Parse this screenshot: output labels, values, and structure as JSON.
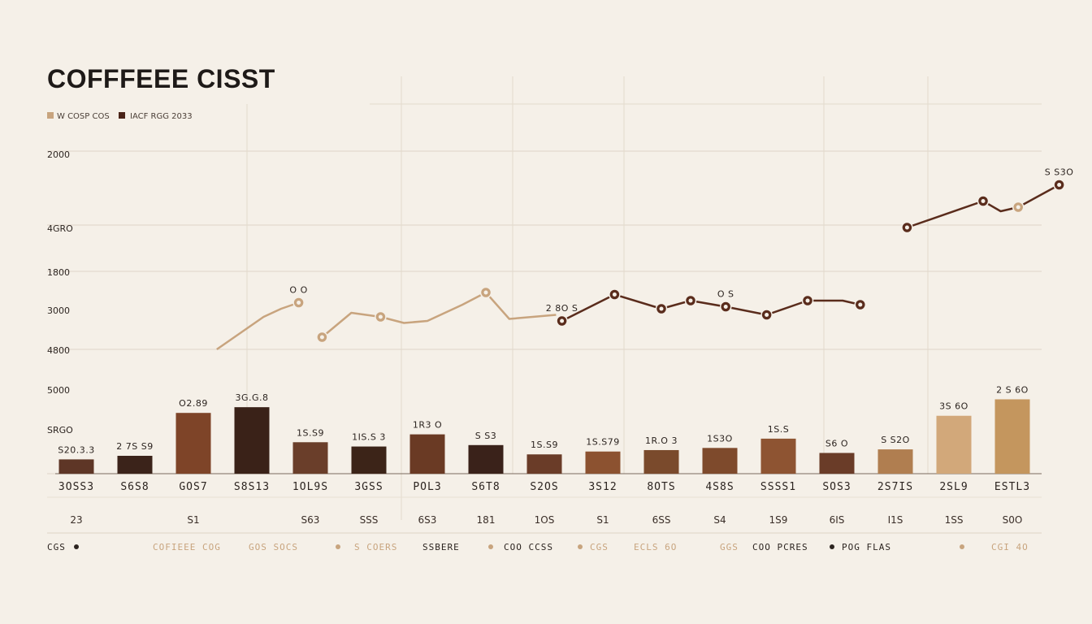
{
  "chart_data": {
    "type": "bar",
    "title": "COFFFEEE CISST",
    "legend": [
      {
        "label": "W COSP COS",
        "color": "#c8a47e"
      },
      {
        "label": "IACF RGG 2033",
        "color": "#4a2418"
      }
    ],
    "y_ticks": [
      "2000",
      "4GRO",
      "1800",
      "3000",
      "4800",
      "5000",
      "SRGO"
    ],
    "categories": [
      "3OSS3",
      "S6S8",
      "GOS7",
      "S8S13",
      "1OL9S",
      "3GSS",
      "POL3",
      "S6T8",
      "S2OS",
      "3S12",
      "8OTS",
      "4S8S",
      "SSSS1",
      "SOS3",
      "2S7IS",
      "2SL9",
      "ESTL3"
    ],
    "values": [
      20,
      25,
      85,
      93,
      44,
      38,
      55,
      40,
      27,
      31,
      33,
      36,
      49,
      29,
      34,
      81,
      104
    ],
    "bar_labels": [
      "S20.3.3",
      "2 7S S9",
      "O2.89",
      "3G.G.8",
      "1S.S9",
      "1IS.S 3",
      "1R3 O",
      "S S3",
      "1S.S9",
      "1S.S79",
      "1R.O 3",
      "1S3O",
      "1S.S",
      "S6 O",
      "S S2O",
      "3S 6O",
      "2 S 6O"
    ],
    "bar_colors": [
      "#5e3626",
      "#3b231a",
      "#7e4428",
      "#3a2218",
      "#6a3e2a",
      "#3c2418",
      "#6a3a24",
      "#3a221a",
      "#6a3c28",
      "#8c5230",
      "#7a4a2c",
      "#7e4a2c",
      "#8e5432",
      "#6a3c28",
      "#b07e50",
      "#d2a87a",
      "#c4965e"
    ],
    "sub_labels": [
      "23",
      "",
      "S1",
      "",
      "S63",
      "SSS",
      "6S3",
      "181",
      "1OS",
      "S1",
      "6SS",
      "S4",
      "1S9",
      "6IS",
      "I1S",
      "1SS",
      "S0O"
    ],
    "line_series": [
      {
        "name": "W COSP COS",
        "color": "#c8a47e",
        "points": [
          [
            2.4,
            3.4
          ],
          [
            2.8,
            3.8
          ],
          [
            3.2,
            4.2
          ],
          [
            3.5,
            4.4
          ],
          [
            3.8,
            4.55
          ]
        ],
        "markers": [
          [
            3.8,
            4.55
          ]
        ],
        "labels": [
          {
            "at": [
              3.8,
              4.55
            ],
            "text": "O O"
          }
        ]
      },
      {
        "name": "W COSP COS 2",
        "color": "#c8a47e",
        "points": [
          [
            4.2,
            3.7
          ],
          [
            4.7,
            4.3
          ],
          [
            5.2,
            4.2
          ],
          [
            5.6,
            4.05
          ],
          [
            6.0,
            4.1
          ],
          [
            6.6,
            4.5
          ],
          [
            7.0,
            4.8
          ],
          [
            7.4,
            4.15
          ],
          [
            7.8,
            4.2
          ],
          [
            8.2,
            4.25
          ]
        ],
        "markers": [
          [
            4.2,
            3.7
          ],
          [
            5.2,
            4.2
          ],
          [
            7.0,
            4.8
          ]
        ],
        "labels": []
      },
      {
        "name": "IACF RGG 2033",
        "color": "#5a2c1c",
        "points": [
          [
            8.3,
            4.1
          ],
          [
            9.2,
            4.75
          ],
          [
            10.0,
            4.4
          ],
          [
            10.5,
            4.6
          ],
          [
            11.1,
            4.45
          ],
          [
            11.8,
            4.25
          ],
          [
            12.5,
            4.6
          ],
          [
            13.1,
            4.6
          ],
          [
            13.4,
            4.5
          ]
        ],
        "markers": [
          [
            8.3,
            4.1
          ],
          [
            9.2,
            4.75
          ],
          [
            10.0,
            4.4
          ],
          [
            10.5,
            4.6
          ],
          [
            11.1,
            4.45
          ],
          [
            11.8,
            4.25
          ],
          [
            12.5,
            4.6
          ],
          [
            13.4,
            4.5
          ]
        ],
        "labels": [
          {
            "at": [
              8.3,
              4.1
            ],
            "text": "2 8O S"
          },
          {
            "at": [
              11.1,
              4.45
            ],
            "text": "O S"
          }
        ]
      },
      {
        "name": "IACF RGG 2033 2",
        "color": "#5a2c1c",
        "points": [
          [
            14.2,
            6.4
          ],
          [
            15.5,
            7.05
          ],
          [
            15.8,
            6.8
          ],
          [
            16.1,
            6.9
          ],
          [
            16.8,
            7.45
          ]
        ],
        "markers": [
          [
            14.2,
            6.4
          ],
          [
            15.5,
            7.05
          ],
          [
            16.8,
            7.45
          ]
        ],
        "labels": [
          {
            "at": [
              16.8,
              7.45
            ],
            "text": "S S3O"
          }
        ]
      },
      {
        "name": "W COSP COS 3",
        "color": "#c8a47e",
        "points": [
          [
            16.1,
            6.9
          ]
        ],
        "markers": [
          [
            16.1,
            6.9
          ]
        ],
        "labels": []
      }
    ],
    "footer": [
      {
        "text": "CGS",
        "color": "#2c2420"
      },
      {
        "text": "COFIEEE COG",
        "color": "#c8a47e"
      },
      {
        "text": "GOS SOCS",
        "color": "#c8a47e"
      },
      {
        "text": "S COERS",
        "color": "#c8a47e"
      },
      {
        "text": "SSBERE",
        "color": "#2c2420"
      },
      {
        "text": "COO CCSS",
        "color": "#2c2420"
      },
      {
        "text": "CGS",
        "color": "#c8a47e"
      },
      {
        "text": "ECLS 6O",
        "color": "#c8a47e"
      },
      {
        "text": "GGS",
        "color": "#c8a47e"
      },
      {
        "text": "COO PCRES",
        "color": "#2c2420"
      },
      {
        "text": "POG FLAS",
        "color": "#2c2420"
      },
      {
        "text": "CGI 4O",
        "color": "#c8a47e"
      }
    ]
  }
}
